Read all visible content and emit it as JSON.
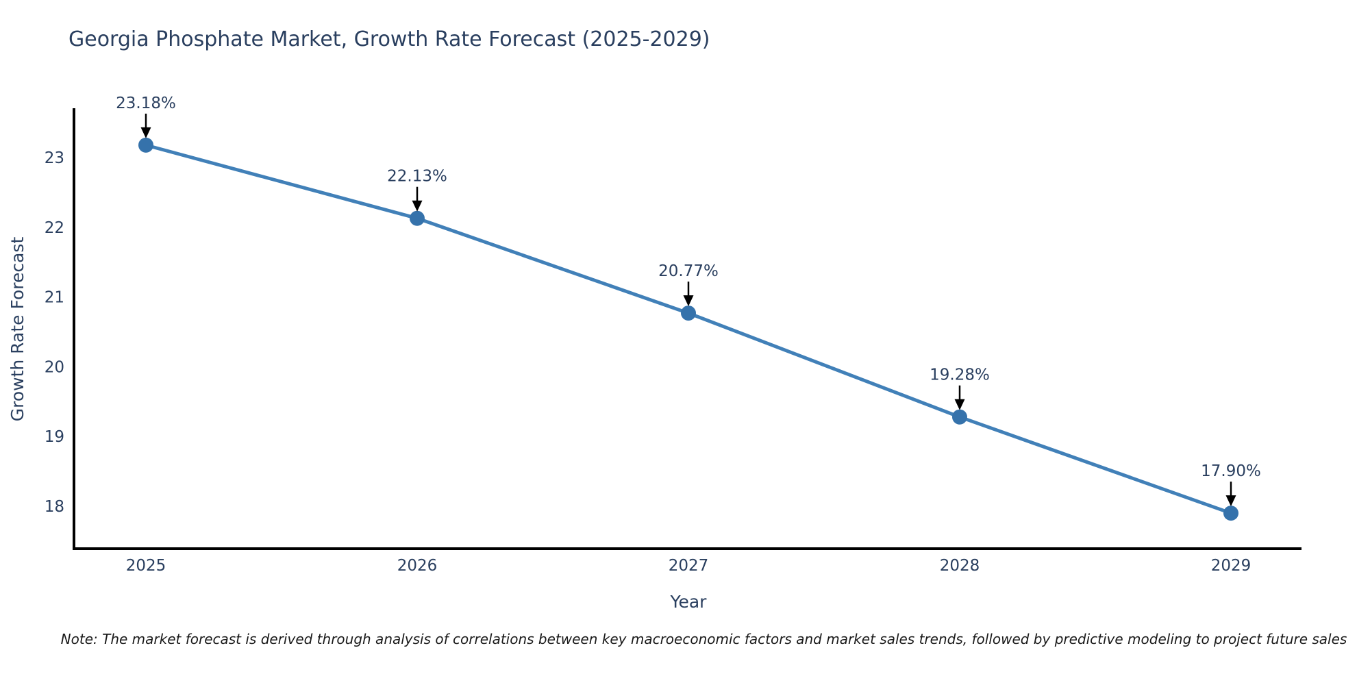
{
  "header": {
    "title": "Georgia Phosphate Market, Growth Rate Forecast (2025-2029)"
  },
  "chart_data": {
    "type": "line",
    "title": "Georgia Phosphate Market, Growth Rate Forecast (2025-2029)",
    "xlabel": "Year",
    "ylabel": "Growth Rate Forecast",
    "categories": [
      "2025",
      "2026",
      "2027",
      "2028",
      "2029"
    ],
    "series": [
      {
        "name": "Growth Rate Forecast",
        "values": [
          23.18,
          22.13,
          20.77,
          19.28,
          17.9
        ]
      }
    ],
    "point_labels": [
      "23.18%",
      "22.13%",
      "20.77%",
      "19.28%",
      "17.90%"
    ],
    "ytick_labels": [
      "18",
      "19",
      "20",
      "21",
      "22",
      "23"
    ],
    "ytick_values": [
      18,
      19,
      20,
      21,
      22,
      23
    ],
    "ylim": [
      17.39,
      23.69
    ],
    "grid": false,
    "legend_position": "none",
    "colors": {
      "line": "#4180b8",
      "marker": "#3572ab",
      "axis": "#000000",
      "text": "#2a3f5f",
      "annotation_arrow": "#000000"
    }
  },
  "note": {
    "text": "Note: The market forecast is derived through analysis of correlations between key macroeconomic factors and market sales trends, followed by predictive modeling to project future sales"
  }
}
